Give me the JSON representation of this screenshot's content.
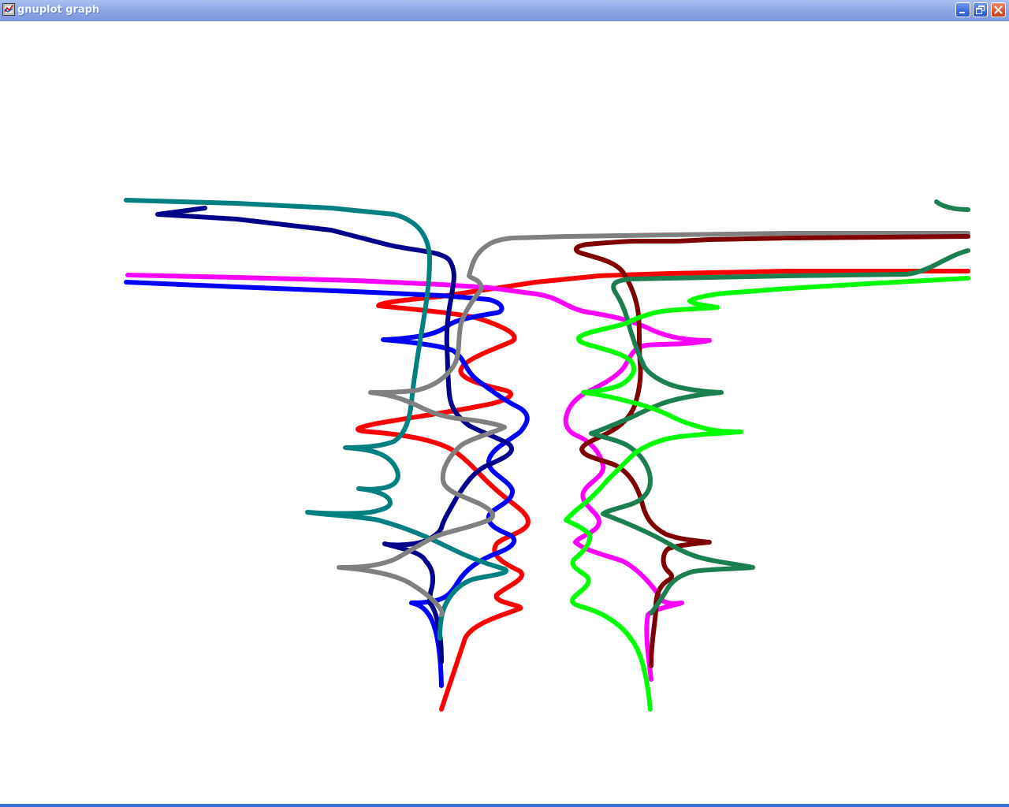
{
  "window": {
    "title": "gnuplot graph",
    "app_icon": "gnuplot-icon",
    "controls": {
      "minimize": "minimize-icon",
      "restore": "restore-icon",
      "close": "close-icon"
    },
    "titlebar_color": "#8fa9e6"
  },
  "plot": {
    "background": "#ffffff",
    "curves": [
      {
        "id": "curve-teal",
        "color": "#008080"
      },
      {
        "id": "curve-navy",
        "color": "#00008b"
      },
      {
        "id": "curve-magenta",
        "color": "#ff00ff"
      },
      {
        "id": "curve-blue",
        "color": "#0000ff"
      },
      {
        "id": "curve-red",
        "color": "#ff0000"
      },
      {
        "id": "curve-gray",
        "color": "#808080"
      },
      {
        "id": "curve-maroon",
        "color": "#800000"
      },
      {
        "id": "curve-seagreen",
        "color": "#1b7f4f"
      },
      {
        "id": "curve-lime",
        "color": "#00ff00"
      }
    ]
  }
}
